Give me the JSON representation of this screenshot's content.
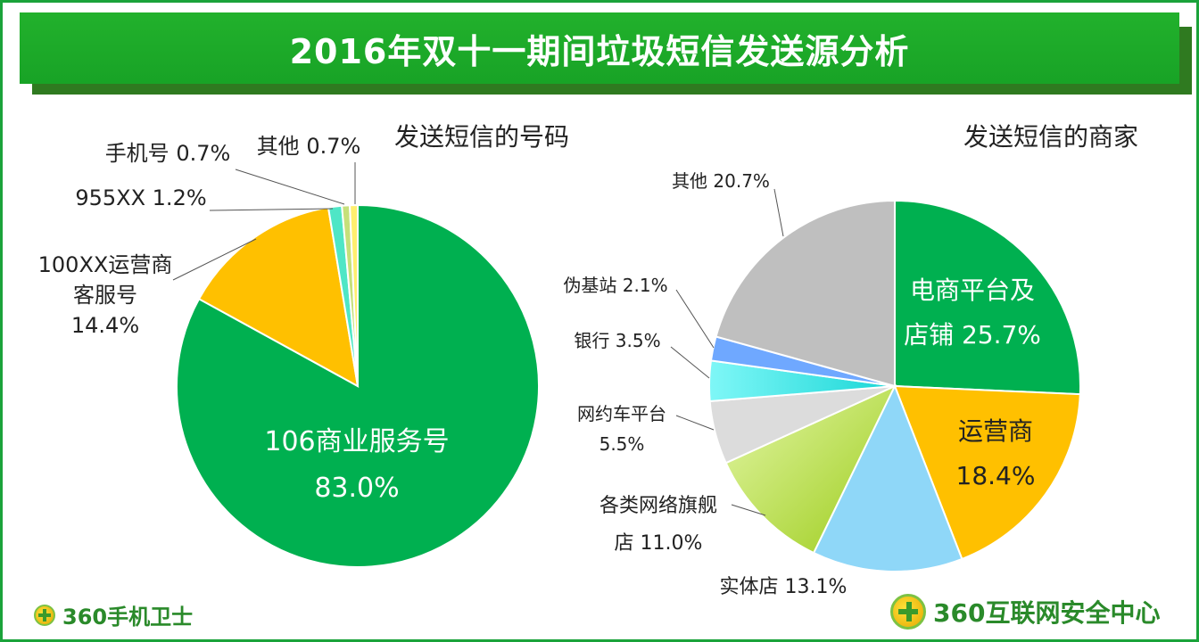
{
  "title": "2016年双十一期间垃圾短信发送源分析",
  "logos": {
    "left": "360手机卫士",
    "right": "360互联网安全中心"
  },
  "chart_data": [
    {
      "type": "pie",
      "title": "发送短信的号码",
      "slices": [
        {
          "name": "106商业服务号",
          "value": 83.0,
          "label_lines": [
            "106商业服务号",
            "83.0%"
          ],
          "color": "#00b050"
        },
        {
          "name": "100XX运营商客服号",
          "value": 14.4,
          "label_lines": [
            "100XX运营商",
            "客服号",
            "14.4%"
          ],
          "color": "#ffc000"
        },
        {
          "name": "955XX",
          "value": 1.2,
          "label_lines": [
            "955XX 1.2%"
          ],
          "color": "#4fe6c6"
        },
        {
          "name": "手机号",
          "value": 0.7,
          "label_lines": [
            "手机号 0.7%"
          ],
          "color": "#c6e07a"
        },
        {
          "name": "其他",
          "value": 0.7,
          "label_lines": [
            "其他 0.7%"
          ],
          "color": "#ffee6e"
        }
      ]
    },
    {
      "type": "pie",
      "title": "发送短信的商家",
      "slices": [
        {
          "name": "电商平台及店铺",
          "value": 25.7,
          "label_lines": [
            "电商平台及",
            "店铺 25.7%"
          ],
          "color": "#00b050"
        },
        {
          "name": "运营商",
          "value": 18.4,
          "label_lines": [
            "运营商",
            "18.4%"
          ],
          "color": "#ffc000"
        },
        {
          "name": "实体店",
          "value": 13.1,
          "label_lines": [
            "实体店 13.1%"
          ],
          "color": "#8fd7f8"
        },
        {
          "name": "各类网络旗舰店",
          "value": 11.0,
          "label_lines": [
            "各类网络旗舰",
            "店 11.0%"
          ],
          "color": "#c5e860"
        },
        {
          "name": "网约车平台",
          "value": 5.5,
          "label_lines": [
            "网约车平台",
            "5.5%"
          ],
          "color": "#dcdcdc"
        },
        {
          "name": "银行",
          "value": 3.5,
          "label_lines": [
            "银行 3.5%"
          ],
          "color": "#33e6e6"
        },
        {
          "name": "伪基站",
          "value": 2.1,
          "label_lines": [
            "伪基站 2.1%"
          ],
          "color": "#6fa8ff"
        },
        {
          "name": "其他",
          "value": 20.7,
          "label_lines": [
            "其他 20.7%"
          ],
          "color": "#bfbfbf"
        }
      ]
    }
  ]
}
